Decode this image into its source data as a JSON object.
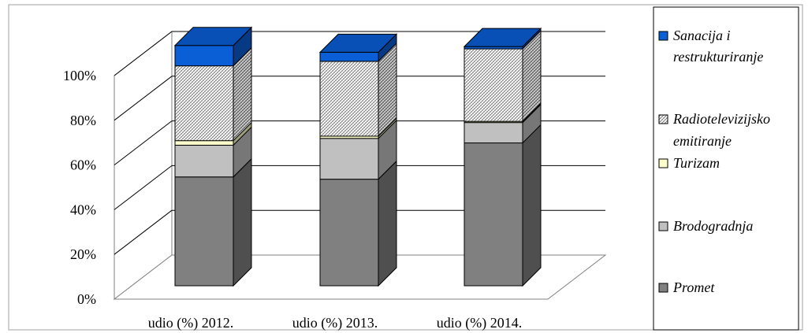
{
  "chart_data": {
    "type": "bar",
    "stacked": true,
    "three_d": true,
    "categories": [
      "udio (%) 2012.",
      "udio (%) 2013.",
      "udio (%) 2014."
    ],
    "series": [
      {
        "name": "Promet",
        "color": "#808080",
        "values": [
          48,
          47,
          63
        ]
      },
      {
        "name": "Brodogradnja",
        "color": "#c0c0c0",
        "values": [
          14,
          18,
          9
        ]
      },
      {
        "name": "Turizam",
        "color": "#ffffcc",
        "values": [
          2,
          1,
          0.5
        ]
      },
      {
        "name": "Radiotelevizijsko emitiranje",
        "color": "#e0e0e0",
        "pattern": "crosshatch",
        "values": [
          33,
          33,
          32
        ]
      },
      {
        "name": "Sanacija i restrukturiranje",
        "color": "#0a5ed6",
        "values": [
          9,
          4,
          1
        ]
      }
    ],
    "y_ticks": [
      "0%",
      "20%",
      "40%",
      "60%",
      "80%",
      "100%"
    ],
    "ylim": [
      0,
      100
    ],
    "grid": true,
    "legend_position": "right"
  }
}
